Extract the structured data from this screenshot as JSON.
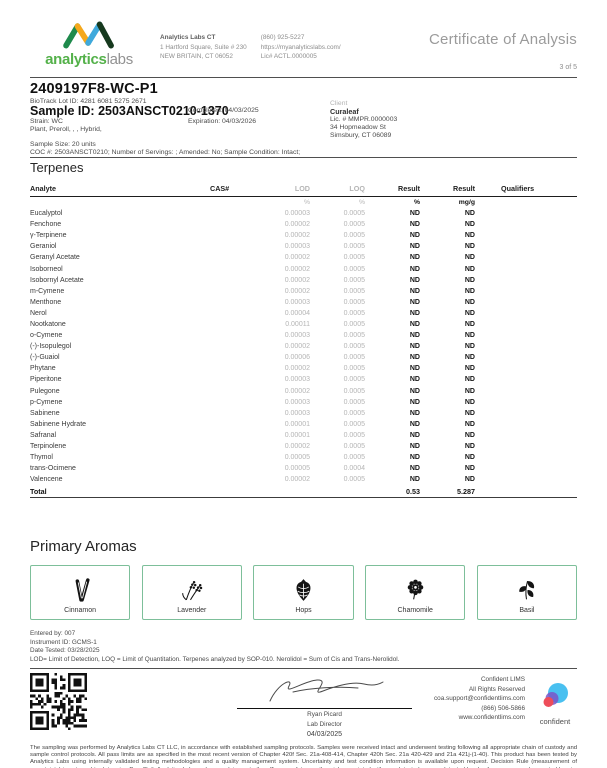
{
  "page": {
    "title": "Certificate of Analysis",
    "page_number": "3 of 5"
  },
  "brand": {
    "word_green": "analytics",
    "word_gray": "labs"
  },
  "lab": {
    "name": "Analytics Labs CT",
    "address_line1": "1 Hartford Square, Suite # 230",
    "address_line2": "NEW BRITAIN, CT 06052",
    "phone": "(860) 925-5227",
    "website": "https://myanalyticslabs.com/",
    "license": "Lic# ACTL.0000005"
  },
  "sample": {
    "heading": "2409197F8-WC-P1",
    "biotrack": "BioTrack Lot ID: 4281 6081 5275 2671",
    "sample_id": "Sample ID: 2503ANSCT0210-1370",
    "strain": "Strain: WC",
    "matrix": "Plant, Preroll, , , Hybrid,",
    "completed": "Completed: 04/03/2025",
    "expiration": "Expiration: 04/03/2026",
    "sample_size": "Sample Size: 20 units",
    "coc": "COC #: 2503ANSCT0210; Number of Servings: ; Amended: No; Sample Condition: Intact;"
  },
  "client": {
    "label": "Client",
    "name": "Curaleaf",
    "license": "Lic. # MMPR.0000003",
    "address_line1": "34 Hopmeadow St",
    "address_line2": "Simsbury, CT 06089"
  },
  "terpenes": {
    "section_title": "Terpenes",
    "columns": [
      "Analyte",
      "CAS#",
      "LOD",
      "LOQ",
      "Result",
      "Result",
      "Qualifiers"
    ],
    "units": {
      "lod": "%",
      "loq": "%",
      "result_pct": "%",
      "result_mgg": "mg/g"
    },
    "rows": [
      {
        "analyte": "Eucalyptol",
        "cas": "",
        "lod": "0.00003",
        "loq": "0.0005",
        "result_pct": "ND",
        "result_mgg": "ND",
        "qualifiers": ""
      },
      {
        "analyte": "Fenchone",
        "cas": "",
        "lod": "0.00002",
        "loq": "0.0005",
        "result_pct": "ND",
        "result_mgg": "ND",
        "qualifiers": ""
      },
      {
        "analyte": "γ-Terpinene",
        "cas": "",
        "lod": "0.00002",
        "loq": "0.0005",
        "result_pct": "ND",
        "result_mgg": "ND",
        "qualifiers": ""
      },
      {
        "analyte": "Geraniol",
        "cas": "",
        "lod": "0.00003",
        "loq": "0.0005",
        "result_pct": "ND",
        "result_mgg": "ND",
        "qualifiers": ""
      },
      {
        "analyte": "Geranyl Acetate",
        "cas": "",
        "lod": "0.00002",
        "loq": "0.0005",
        "result_pct": "ND",
        "result_mgg": "ND",
        "qualifiers": ""
      },
      {
        "analyte": "Isoborneol",
        "cas": "",
        "lod": "0.00002",
        "loq": "0.0005",
        "result_pct": "ND",
        "result_mgg": "ND",
        "qualifiers": ""
      },
      {
        "analyte": "Isobornyl Acetate",
        "cas": "",
        "lod": "0.00002",
        "loq": "0.0005",
        "result_pct": "ND",
        "result_mgg": "ND",
        "qualifiers": ""
      },
      {
        "analyte": "m-Cymene",
        "cas": "",
        "lod": "0.00002",
        "loq": "0.0005",
        "result_pct": "ND",
        "result_mgg": "ND",
        "qualifiers": ""
      },
      {
        "analyte": "Menthone",
        "cas": "",
        "lod": "0.00003",
        "loq": "0.0005",
        "result_pct": "ND",
        "result_mgg": "ND",
        "qualifiers": ""
      },
      {
        "analyte": "Nerol",
        "cas": "",
        "lod": "0.00004",
        "loq": "0.0005",
        "result_pct": "ND",
        "result_mgg": "ND",
        "qualifiers": ""
      },
      {
        "analyte": "Nootkatone",
        "cas": "",
        "lod": "0.00011",
        "loq": "0.0005",
        "result_pct": "ND",
        "result_mgg": "ND",
        "qualifiers": ""
      },
      {
        "analyte": "o-Cymene",
        "cas": "",
        "lod": "0.00003",
        "loq": "0.0005",
        "result_pct": "ND",
        "result_mgg": "ND",
        "qualifiers": ""
      },
      {
        "analyte": "(-)-Isopulegol",
        "cas": "",
        "lod": "0.00002",
        "loq": "0.0005",
        "result_pct": "ND",
        "result_mgg": "ND",
        "qualifiers": ""
      },
      {
        "analyte": "(-)-Guaiol",
        "cas": "",
        "lod": "0.00006",
        "loq": "0.0005",
        "result_pct": "ND",
        "result_mgg": "ND",
        "qualifiers": ""
      },
      {
        "analyte": "Phytane",
        "cas": "",
        "lod": "0.00002",
        "loq": "0.0005",
        "result_pct": "ND",
        "result_mgg": "ND",
        "qualifiers": ""
      },
      {
        "analyte": "Piperitone",
        "cas": "",
        "lod": "0.00003",
        "loq": "0.0005",
        "result_pct": "ND",
        "result_mgg": "ND",
        "qualifiers": ""
      },
      {
        "analyte": "Pulegone",
        "cas": "",
        "lod": "0.00002",
        "loq": "0.0005",
        "result_pct": "ND",
        "result_mgg": "ND",
        "qualifiers": ""
      },
      {
        "analyte": "p-Cymene",
        "cas": "",
        "lod": "0.00003",
        "loq": "0.0005",
        "result_pct": "ND",
        "result_mgg": "ND",
        "qualifiers": ""
      },
      {
        "analyte": "Sabinene",
        "cas": "",
        "lod": "0.00003",
        "loq": "0.0005",
        "result_pct": "ND",
        "result_mgg": "ND",
        "qualifiers": ""
      },
      {
        "analyte": "Sabinene Hydrate",
        "cas": "",
        "lod": "0.00001",
        "loq": "0.0005",
        "result_pct": "ND",
        "result_mgg": "ND",
        "qualifiers": ""
      },
      {
        "analyte": "Safranal",
        "cas": "",
        "lod": "0.00001",
        "loq": "0.0005",
        "result_pct": "ND",
        "result_mgg": "ND",
        "qualifiers": ""
      },
      {
        "analyte": "Terpinolene",
        "cas": "",
        "lod": "0.00002",
        "loq": "0.0005",
        "result_pct": "ND",
        "result_mgg": "ND",
        "qualifiers": ""
      },
      {
        "analyte": "Thymol",
        "cas": "",
        "lod": "0.00005",
        "loq": "0.0005",
        "result_pct": "ND",
        "result_mgg": "ND",
        "qualifiers": ""
      },
      {
        "analyte": "trans-Ocimene",
        "cas": "",
        "lod": "0.00005",
        "loq": "0.0004",
        "result_pct": "ND",
        "result_mgg": "ND",
        "qualifiers": ""
      },
      {
        "analyte": "Valencene",
        "cas": "",
        "lod": "0.00002",
        "loq": "0.0005",
        "result_pct": "ND",
        "result_mgg": "ND",
        "qualifiers": ""
      }
    ],
    "total": {
      "label": "Total",
      "result_pct": "0.53",
      "result_mgg": "5.287"
    }
  },
  "aromas": {
    "section_title": "Primary Aromas",
    "items": [
      {
        "label": "Cinnamon",
        "icon": "cinnamon-icon"
      },
      {
        "label": "Lavender",
        "icon": "lavender-icon"
      },
      {
        "label": "Hops",
        "icon": "hops-icon"
      },
      {
        "label": "Chamomile",
        "icon": "chamomile-icon"
      },
      {
        "label": "Basil",
        "icon": "basil-icon"
      }
    ]
  },
  "footnotes": {
    "entered_by": "Entered by: 007",
    "instrument": "Instrument ID: GCMS-1",
    "date_tested": "Date Tested: 03/28/2025",
    "definitions": "LOD= Limit of Detection, LOQ = Limit of Quantitation. Terpenes analyzed by SOP-010. Nerolidol = Sum of Cis and Trans-Nerolidol."
  },
  "signature": {
    "name": "Ryan Picard",
    "title": "Lab Director",
    "date": "04/03/2025"
  },
  "lims": {
    "line1": "Confident LIMS",
    "line2": "All Rights Reserved",
    "email": "coa.support@confidentlims.com",
    "phone": "(866) 506-5866",
    "website": "www.confidentlims.com",
    "logo_text": "confident"
  },
  "colors": {
    "brand_green": "#54b14a",
    "logo_orange": "#f5a81c",
    "logo_blue": "#3fa9dc",
    "logo_dark_green": "#16391e",
    "aroma_border_green": "#7dbf9a",
    "confident_blue": "#49c0f0",
    "confident_red": "#ee4d5a"
  },
  "disclaimer": "The sampling was performed by Analytics Labs CT LLC, in accordance with established sampling protocols. Samples were received intact and underwent testing following all appropriate chain of custody and sample control protocols. All pass limits are as specified in the most recent version of Chapter 420f Sec. 21a-408-414, Chapter 420h Sec. 21a 420-429 and 21a 421j-(1-40). This product has been tested by Analytics Labs using internally validated testing methodologies and a quality management system. Uncertainty and test condition information is available upon request. Decision Rule (measurement of uncertainty) is not used to determine Pass/Fail. Analytics Labs makes no claim as to the efficacy, safety, or other risk associated with any detected, or non-detected levels of any compounds reported herein. This Certificate shall not be reproduced, except in full, without the written consent of Analytics Labs CT."
}
